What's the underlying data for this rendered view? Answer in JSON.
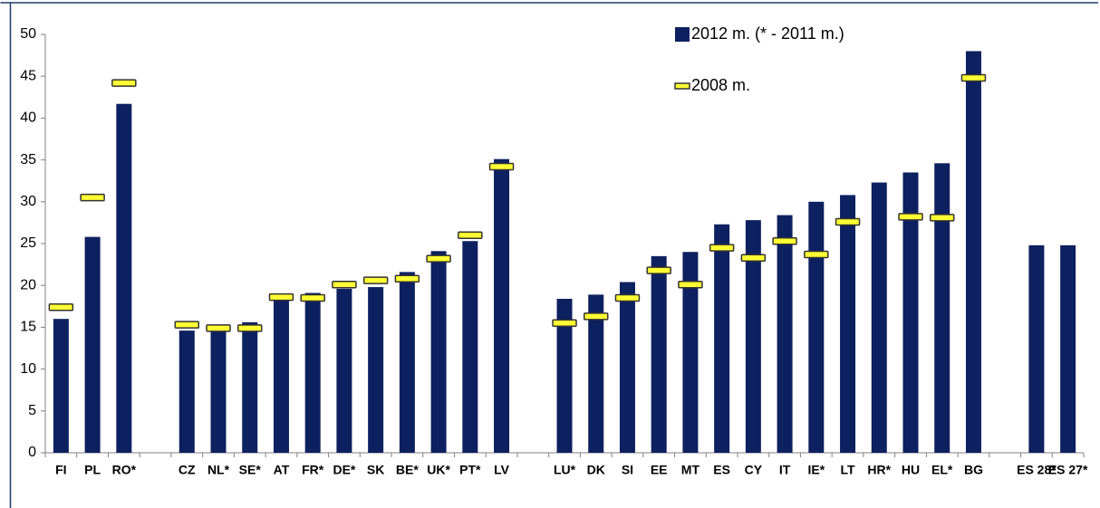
{
  "chart_data": {
    "type": "bar",
    "categories": [
      "FI",
      "PL",
      "RO*",
      null,
      "CZ",
      "NL*",
      "SE*",
      "AT",
      "FR*",
      "DE*",
      "SK",
      "BE*",
      "UK*",
      "PT*",
      "LV",
      null,
      "LU*",
      "DK",
      "SI",
      "EE",
      "MT",
      "ES",
      "CY",
      "IT",
      "IE*",
      "LT",
      "HR*",
      "HU",
      "EL*",
      "BG",
      null,
      "ES 28*",
      "ES 27*"
    ],
    "series": [
      {
        "name": "2012 m. (* - 2011 m.)",
        "color": "#0d2060",
        "style": "bar",
        "values": [
          16,
          25.8,
          41.7,
          null,
          14.6,
          14.8,
          15.6,
          18.5,
          19.1,
          19.6,
          19.8,
          21.6,
          24.1,
          25.3,
          35.1,
          null,
          18.4,
          18.9,
          20.4,
          23.5,
          24.0,
          27.3,
          27.8,
          28.4,
          30.0,
          30.8,
          32.3,
          33.5,
          34.6,
          48.0,
          null,
          24.8,
          24.8
        ]
      },
      {
        "name": "2008 m.",
        "color": "#ffff33",
        "style": "marker",
        "values": [
          17.4,
          30.5,
          44.2,
          null,
          15.3,
          14.9,
          14.9,
          18.6,
          18.5,
          20.1,
          20.6,
          20.8,
          23.2,
          26.0,
          34.2,
          null,
          15.5,
          16.3,
          18.5,
          21.8,
          20.1,
          24.5,
          23.3,
          25.3,
          23.7,
          27.6,
          null,
          28.2,
          28.1,
          44.8,
          null,
          null,
          null
        ]
      }
    ],
    "ylim": [
      0,
      50
    ],
    "yticks": [
      0,
      5,
      10,
      15,
      20,
      25,
      30,
      35,
      40,
      45,
      50
    ],
    "legend": "top-right"
  }
}
